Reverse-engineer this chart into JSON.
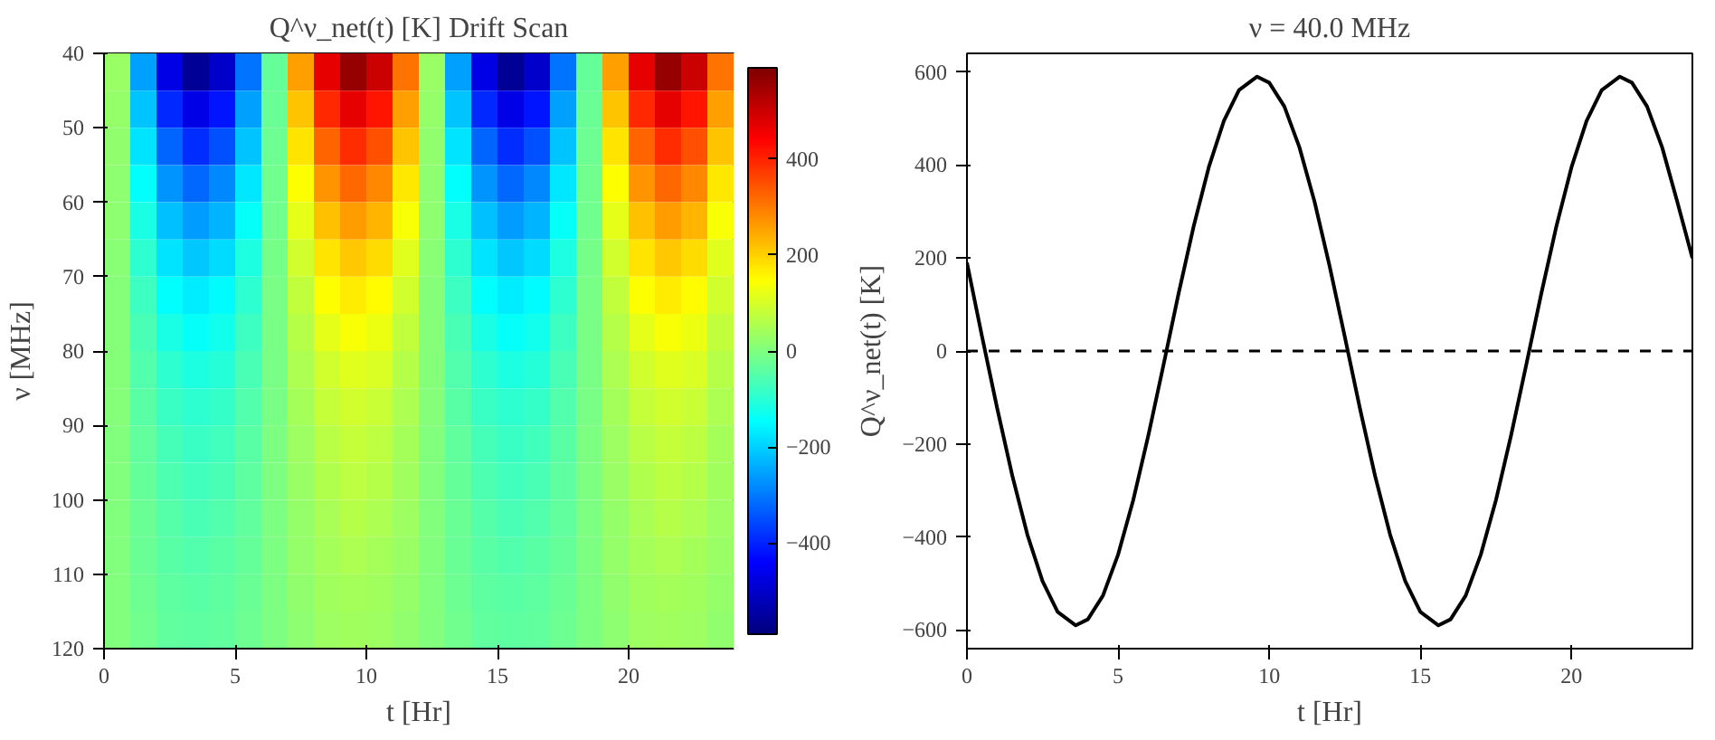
{
  "chart_data": [
    {
      "type": "heatmap",
      "title": "Q^ν_net(t) [K] Drift Scan",
      "xlabel": "t [Hr]",
      "ylabel": "ν [MHz]",
      "x": [
        0.5,
        1.5,
        2.5,
        3.5,
        4.5,
        5.5,
        6.5,
        7.5,
        8.5,
        9.5,
        10.5,
        11.5,
        12.5,
        13.5,
        14.5,
        15.5,
        16.5,
        17.5,
        18.5,
        19.5,
        20.5,
        21.5,
        22.5,
        23.5
      ],
      "y": [
        42.5,
        47.5,
        52.5,
        57.5,
        62.5,
        67.5,
        72.5,
        77.5,
        82.5,
        87.5,
        92.5,
        97.5,
        102.5,
        107.5,
        112.5,
        117.5
      ],
      "xlim": [
        0,
        24
      ],
      "ylim": [
        120,
        40
      ],
      "xticks": [
        0,
        5,
        10,
        15,
        20
      ],
      "yticks": [
        40,
        50,
        60,
        70,
        80,
        90,
        100,
        110,
        120
      ],
      "clim": [
        -590,
        590
      ],
      "cticks": [
        -400,
        -200,
        0,
        200,
        400
      ],
      "cells": [
        [
          29,
          -254,
          -470,
          -559,
          -499,
          -305,
          -29,
          254,
          470,
          559,
          499,
          305,
          29,
          -254,
          -470,
          -559,
          -499,
          -305,
          -29,
          254,
          470,
          559,
          499,
          305
        ],
        [
          24,
          -213,
          -394,
          -470,
          -419,
          -256,
          -24,
          213,
          394,
          470,
          419,
          256,
          24,
          -213,
          -394,
          -470,
          -419,
          -256,
          -24,
          213,
          394,
          470,
          419,
          256
        ],
        [
          20,
          -177,
          -327,
          -390,
          -347,
          -213,
          -20,
          177,
          327,
          390,
          347,
          213,
          20,
          -177,
          -327,
          -390,
          -347,
          -213,
          -20,
          177,
          327,
          390,
          347,
          213
        ],
        [
          17,
          -145,
          -268,
          -320,
          -285,
          -174,
          -17,
          145,
          268,
          320,
          285,
          174,
          17,
          -145,
          -268,
          -320,
          -285,
          -174,
          -17,
          145,
          268,
          320,
          285,
          174
        ],
        [
          14,
          -118,
          -218,
          -260,
          -232,
          -142,
          -14,
          118,
          218,
          260,
          232,
          142,
          14,
          -118,
          -218,
          -260,
          -232,
          -142,
          -14,
          118,
          218,
          260,
          232,
          142
        ],
        [
          11,
          -95,
          -176,
          -210,
          -187,
          -114,
          -11,
          95,
          176,
          210,
          187,
          114,
          11,
          -95,
          -176,
          -210,
          -187,
          -114,
          -11,
          95,
          176,
          210,
          187,
          114
        ],
        [
          9,
          -77,
          -143,
          -170,
          -151,
          -93,
          -9,
          77,
          143,
          170,
          151,
          93,
          9,
          -77,
          -143,
          -170,
          -151,
          -93,
          -9,
          77,
          143,
          170,
          151,
          93
        ],
        [
          7,
          -64,
          -117,
          -140,
          -125,
          -76,
          -7,
          64,
          117,
          140,
          125,
          76,
          7,
          -64,
          -117,
          -140,
          -125,
          -76,
          -7,
          64,
          117,
          140,
          125,
          76
        ],
        [
          6,
          -52,
          -96,
          -115,
          -102,
          -63,
          -6,
          52,
          96,
          115,
          102,
          63,
          6,
          -52,
          -96,
          -115,
          -102,
          -63,
          -6,
          52,
          96,
          115,
          102,
          63
        ],
        [
          5,
          -43,
          -80,
          -95,
          -85,
          -52,
          -5,
          43,
          80,
          95,
          85,
          52,
          5,
          -43,
          -80,
          -95,
          -85,
          -52,
          -5,
          43,
          80,
          95,
          85,
          52
        ],
        [
          4,
          -36,
          -67,
          -80,
          -71,
          -44,
          -4,
          36,
          67,
          80,
          71,
          44,
          4,
          -36,
          -67,
          -80,
          -71,
          -44,
          -4,
          36,
          67,
          80,
          71,
          44
        ],
        [
          4,
          -32,
          -59,
          -70,
          -62,
          -38,
          -4,
          32,
          59,
          70,
          62,
          38,
          4,
          -32,
          -59,
          -70,
          -62,
          -38,
          -4,
          32,
          59,
          70,
          62,
          38
        ],
        [
          3,
          -27,
          -50,
          -60,
          -53,
          -33,
          -3,
          27,
          50,
          60,
          53,
          33,
          3,
          -27,
          -50,
          -60,
          -53,
          -33,
          -3,
          27,
          50,
          60,
          53,
          33
        ],
        [
          3,
          -24,
          -44,
          -52,
          -46,
          -28,
          -3,
          24,
          44,
          52,
          46,
          28,
          3,
          -24,
          -44,
          -52,
          -46,
          -28,
          -3,
          24,
          44,
          52,
          46,
          28
        ],
        [
          2,
          -21,
          -39,
          -46,
          -41,
          -25,
          -2,
          21,
          39,
          46,
          41,
          25,
          2,
          -21,
          -39,
          -46,
          -41,
          -25,
          -2,
          21,
          39,
          46,
          41,
          25
        ],
        [
          2,
          -18,
          -34,
          -40,
          -36,
          -22,
          -2,
          18,
          34,
          40,
          36,
          22,
          2,
          -18,
          -34,
          -40,
          -36,
          -22,
          -2,
          18,
          34,
          40,
          36,
          22
        ]
      ]
    },
    {
      "type": "line",
      "title": "ν = 40.0 MHz",
      "xlabel": "t [Hr]",
      "ylabel": "Q^ν_net(t) [K]",
      "xlim": [
        0,
        24
      ],
      "ylim": [
        -640,
        640
      ],
      "xticks": [
        0,
        5,
        10,
        15,
        20
      ],
      "yticks": [
        -600,
        -400,
        -200,
        0,
        200,
        400,
        600
      ],
      "ref_lines": [
        {
          "axis": "y",
          "value": 0,
          "color": "#000000",
          "line_style": "dashed"
        }
      ],
      "series": [
        {
          "color": "#000000",
          "x": [
            0,
            0.5,
            1,
            1.5,
            2,
            2.5,
            3,
            3.6,
            4,
            4.5,
            5,
            5.5,
            6,
            6.5,
            7,
            7.5,
            8,
            8.5,
            9,
            9.6,
            10,
            10.5,
            11,
            11.5,
            12,
            12.5,
            13,
            13.5,
            14,
            14.5,
            15,
            15.6,
            16,
            16.5,
            17,
            17.5,
            18,
            18.5,
            19,
            19.5,
            20,
            20.5,
            21,
            21.6,
            22,
            22.5,
            23,
            23.5,
            24
          ],
          "values": [
            190,
            31,
            -123,
            -268,
            -395,
            -495,
            -561,
            -590,
            -577,
            -526,
            -438,
            -321,
            -182,
            -31,
            123,
            268,
            395,
            495,
            561,
            590,
            577,
            526,
            438,
            321,
            182,
            31,
            -123,
            -268,
            -395,
            -495,
            -561,
            -590,
            -577,
            -526,
            -438,
            -321,
            -182,
            -31,
            123,
            268,
            395,
            495,
            561,
            590,
            577,
            526,
            438,
            321,
            200
          ]
        }
      ]
    }
  ]
}
